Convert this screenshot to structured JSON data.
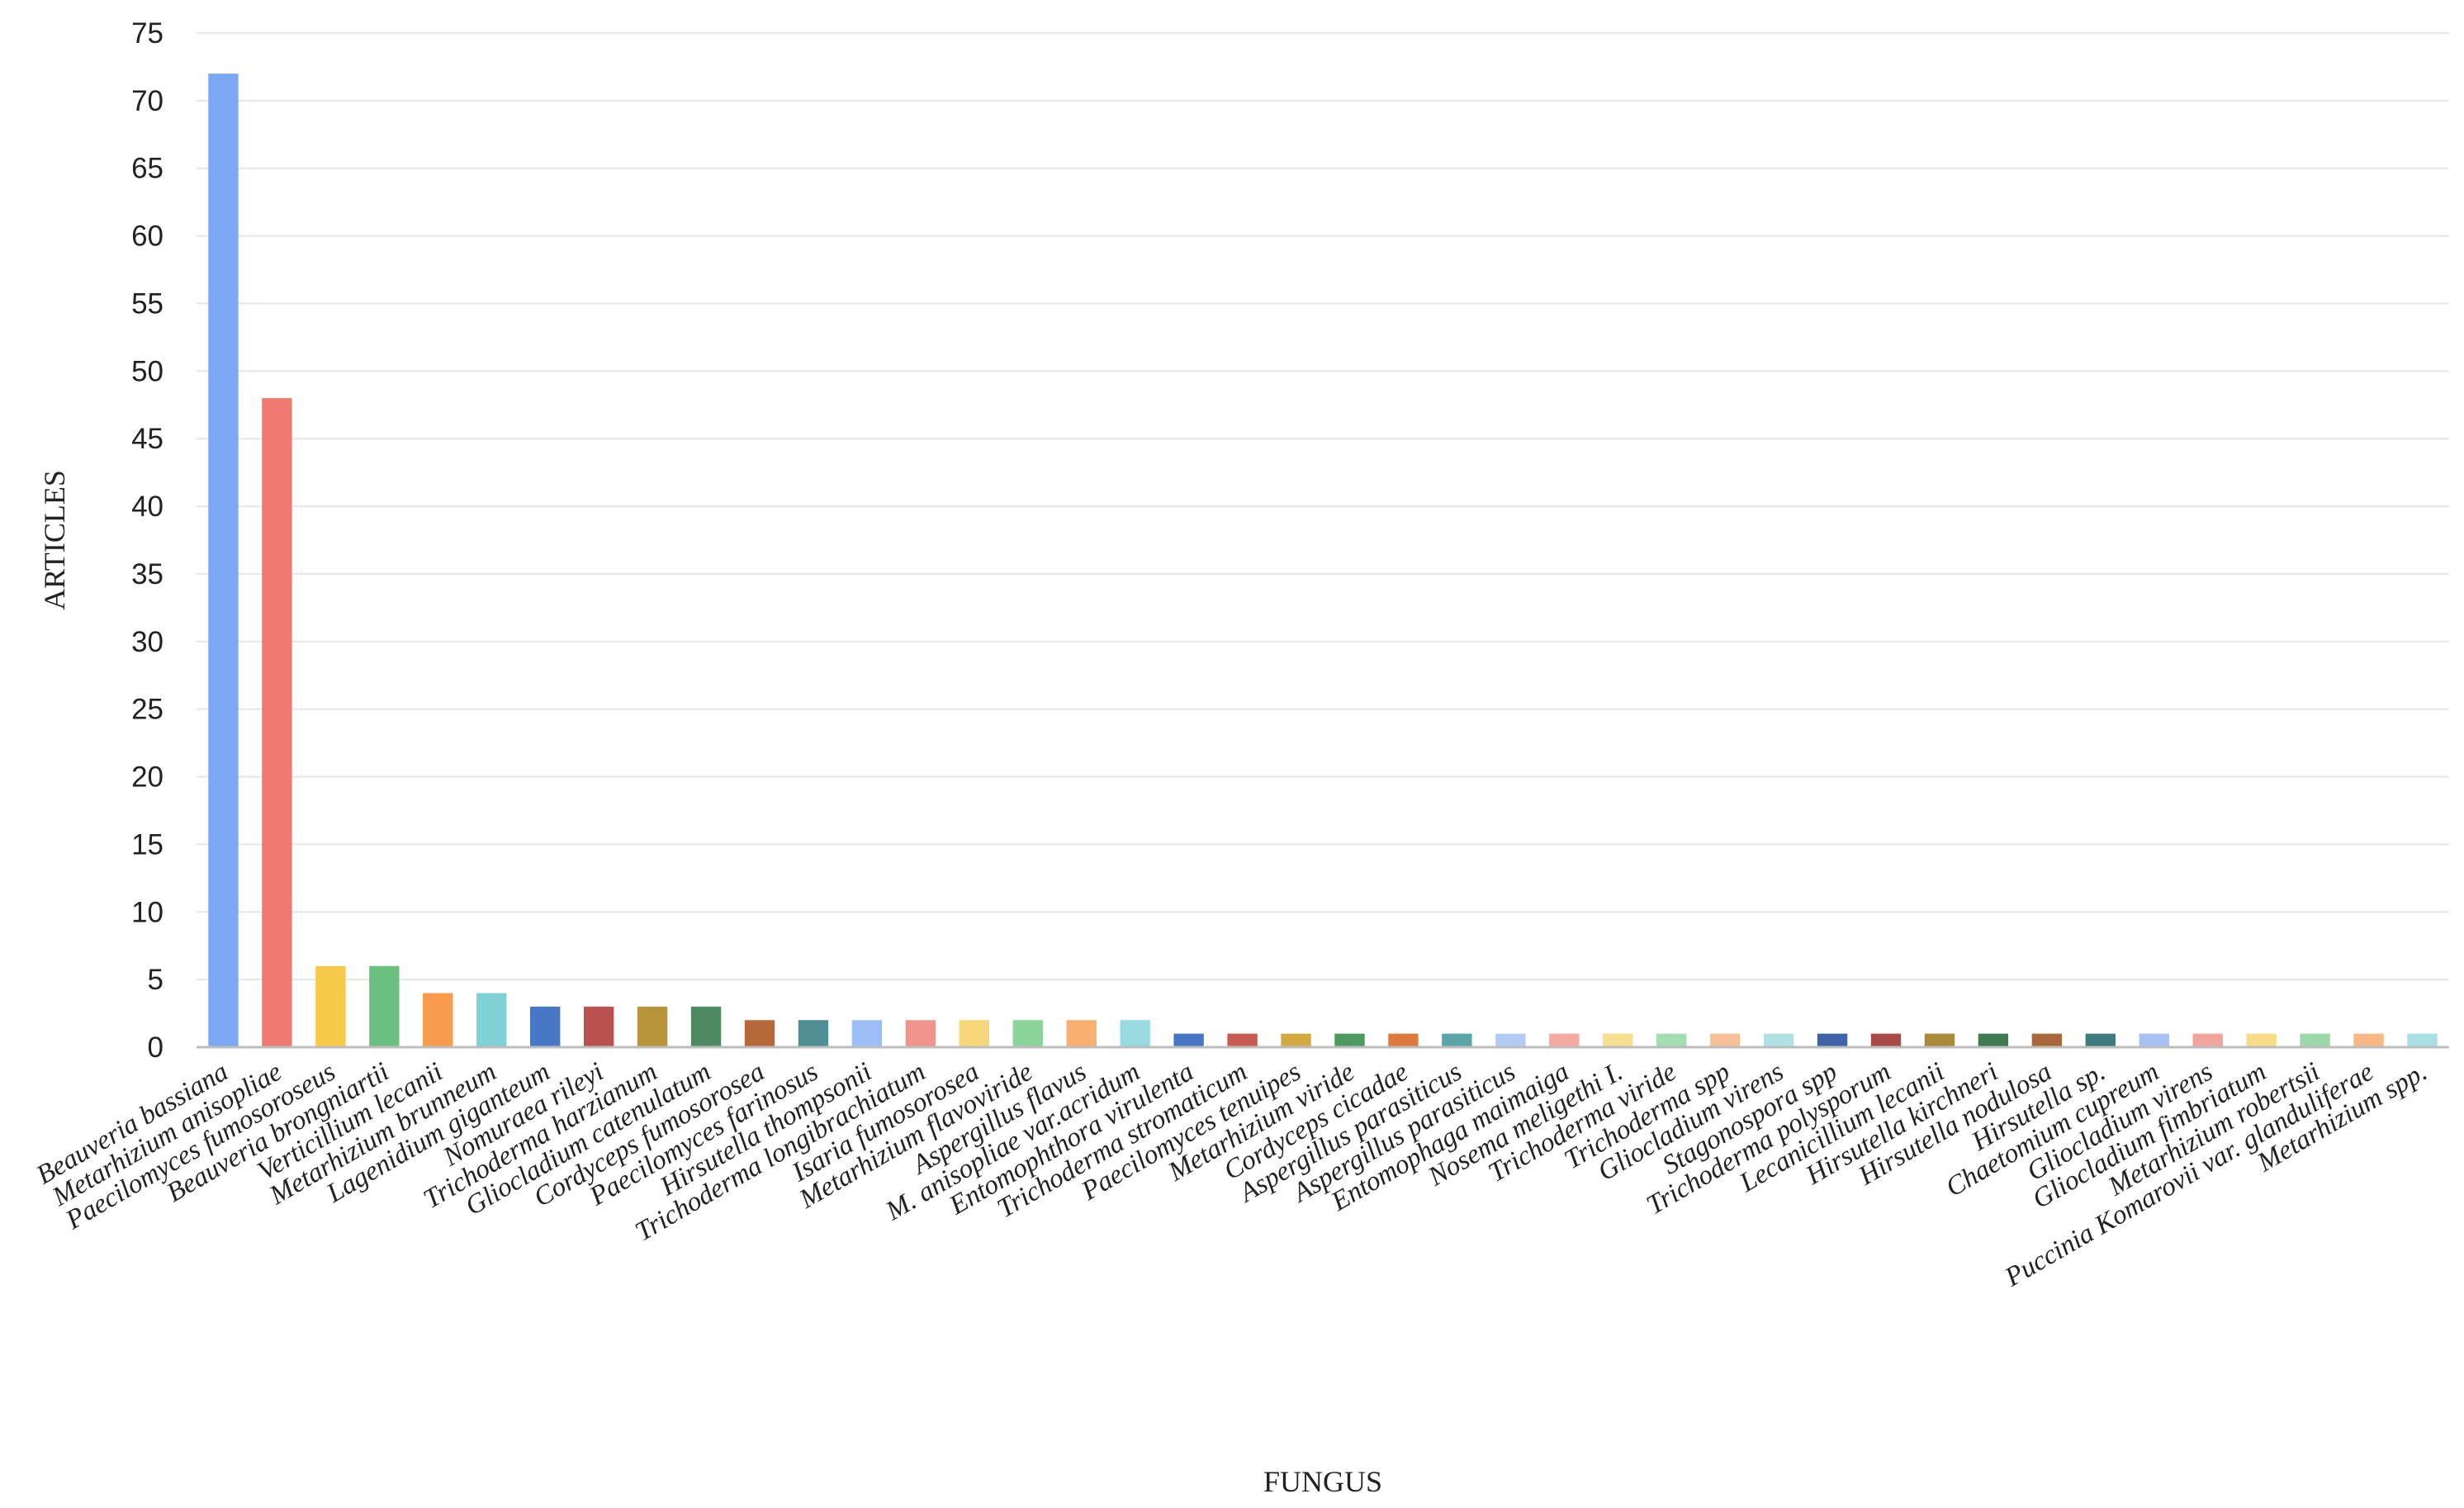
{
  "chart_data": {
    "type": "bar",
    "xlabel": "FUNGUS",
    "ylabel": "ARTICLES",
    "ylim": [
      0,
      75
    ],
    "yticks": [
      0,
      5,
      10,
      15,
      20,
      25,
      30,
      35,
      40,
      45,
      50,
      55,
      60,
      65,
      70,
      75
    ],
    "grid": true,
    "legend": "none",
    "categories": [
      "Beauveria bassiana",
      "Metarhizium anisopliae",
      "Paecilomyces fumosoroseus",
      "Beauveria brongniartii",
      "Verticillium lecanii",
      "Metarhizium brunneum",
      "Lagenidium giganteum",
      "Nomuraea rileyi",
      "Trichoderma harzianum",
      "Gliocladium catenulatum",
      "Cordyceps fumosorosea",
      "Paecilomyces farinosus",
      "Hirsutella thompsonii",
      "Trichoderma longibrachiatum",
      "Isaria fumosorosea",
      "Metarhizium flavoviride",
      "Aspergillus flavus",
      "M. anisopliae var.acridum",
      "Entomophthora virulenta",
      "Trichoderma stromaticum",
      "Paecilomyces tenuipes",
      "Metarhizium viride",
      "Cordyceps cicadae",
      "Aspergillus parasiticus",
      "Aspergillus parasiticus",
      "Entomophaga maimaiga",
      "Nosema meligethi I.",
      "Trichoderma viride",
      "Trichoderma spp",
      "Gliocladium virens",
      "Stagonospora spp",
      "Trichoderma polysporum",
      "Lecanicillium lecanii",
      "Hirsutella kirchneri",
      "Hirsutella nodulosa",
      "Hirsutella sp.",
      "Chaetomium cupreum",
      "Gliocladium virens",
      "Gliocladium fimbriatum",
      "Metarhizium robertsii",
      "Puccinia Komarovii var. glanduliferae",
      "Metarhizium spp."
    ],
    "values": [
      72,
      48,
      6,
      6,
      4,
      4,
      3,
      3,
      3,
      3,
      2,
      2,
      2,
      2,
      2,
      2,
      2,
      2,
      1,
      1,
      1,
      1,
      1,
      1,
      1,
      1,
      1,
      1,
      1,
      1,
      1,
      1,
      1,
      1,
      1,
      1,
      1,
      1,
      1,
      1,
      1,
      1
    ],
    "colors": [
      "#7ba7f4",
      "#ee7a6f",
      "#f7c948",
      "#6cc07f",
      "#f99b4c",
      "#7fd1d6",
      "#4a76c8",
      "#b9524f",
      "#b8943a",
      "#4d8a61",
      "#b5683a",
      "#4f8f93",
      "#9dbdf6",
      "#f1958c",
      "#f8d77a",
      "#8bd59a",
      "#f9ae72",
      "#98dadf",
      "#4a76c8",
      "#c85a52",
      "#d4aa40",
      "#4d9a61",
      "#dd7a3c",
      "#5aa5a8",
      "#b3caf5",
      "#f3aaa3",
      "#f8df8f",
      "#a3deb0",
      "#f8c096",
      "#b0e2e5",
      "#3f62a8",
      "#a84a46",
      "#a88a3a",
      "#3f7a52",
      "#a8683a",
      "#3f7a7f",
      "#a8c2f5",
      "#f1a39c",
      "#f8dc88",
      "#9bd9a9",
      "#f7b886",
      "#a8dfe2"
    ]
  }
}
